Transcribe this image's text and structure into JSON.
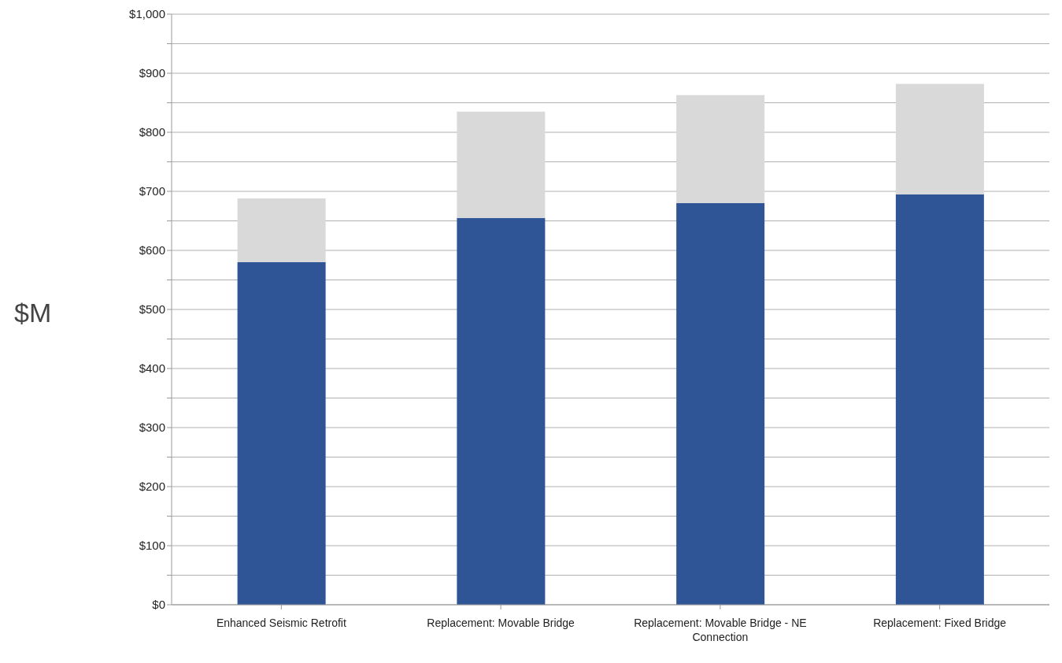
{
  "chart_data": {
    "type": "bar",
    "ylabel": "$M",
    "stacked": true,
    "grid": "y",
    "legend": false,
    "categories": [
      "Enhanced Seismic Retrofit",
      "Replacement: Movable Bridge",
      "Replacement: Movable Bridge - NE Connection",
      "Replacement: Fixed Bridge"
    ],
    "series": [
      {
        "color": "#2f5597",
        "values": [
          580,
          655,
          680,
          695
        ]
      },
      {
        "color": "#d9d9d9",
        "values": [
          108,
          180,
          183,
          187
        ]
      }
    ],
    "ylim": [
      0,
      1000
    ],
    "yticks": [
      {
        "value": 0,
        "label": "$0"
      },
      {
        "value": 50,
        "label": null
      },
      {
        "value": 100,
        "label": "$100"
      },
      {
        "value": 150,
        "label": null
      },
      {
        "value": 200,
        "label": "$200"
      },
      {
        "value": 250,
        "label": null
      },
      {
        "value": 300,
        "label": "$300"
      },
      {
        "value": 350,
        "label": null
      },
      {
        "value": 400,
        "label": "$400"
      },
      {
        "value": 450,
        "label": null
      },
      {
        "value": 500,
        "label": "$500"
      },
      {
        "value": 550,
        "label": null
      },
      {
        "value": 600,
        "label": "$600"
      },
      {
        "value": 650,
        "label": null
      },
      {
        "value": 700,
        "label": "$700"
      },
      {
        "value": 750,
        "label": null
      },
      {
        "value": 800,
        "label": "$800"
      },
      {
        "value": 850,
        "label": null
      },
      {
        "value": 900,
        "label": "$900"
      },
      {
        "value": 950,
        "label": null
      },
      {
        "value": 1000,
        "label": "$1,000"
      }
    ]
  }
}
